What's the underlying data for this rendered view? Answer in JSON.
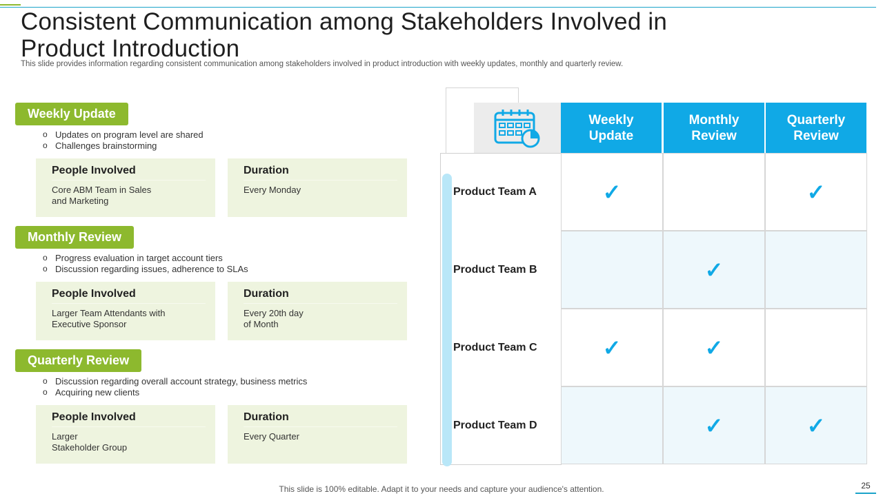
{
  "title": "Consistent Communication among Stakeholders Involved in Product Introduction",
  "subtitle": "This slide provides information regarding consistent communication among stakeholders involved in product introduction with weekly updates, monthly and quarterly review.",
  "sections": [
    {
      "tag": "Weekly Update",
      "bullets": [
        "Updates on program level are shared",
        "Challenges brainstorming"
      ],
      "people_head": "People Involved",
      "people_text": "Core ABM Team in Sales\nand Marketing",
      "duration_head": "Duration",
      "duration_text": "Every Monday"
    },
    {
      "tag": "Monthly Review",
      "bullets": [
        "Progress evaluation  in target account tiers",
        "Discussion regarding  issues, adherence to SLAs"
      ],
      "people_head": "People Involved",
      "people_text": "Larger Team Attendants with\nExecutive Sponsor",
      "duration_head": "Duration",
      "duration_text": "Every 20th day\nof Month"
    },
    {
      "tag": "Quarterly Review",
      "bullets": [
        "Discussion regarding  overall account strategy, business  metrics",
        "Acquiring new clients"
      ],
      "people_head": "People Involved",
      "people_text": "Larger\nStakeholder Group",
      "duration_head": "Duration",
      "duration_text": "Every Quarter"
    }
  ],
  "table": {
    "icon": "calendar-icon",
    "headers": [
      "Weekly\nUpdate",
      "Monthly\nReview",
      "Quarterly\nReview"
    ],
    "check_symbol": "✓",
    "rows": [
      {
        "label": "Product Team A",
        "checks": [
          true,
          false,
          true
        ]
      },
      {
        "label": "Product Team B",
        "checks": [
          false,
          true,
          false
        ]
      },
      {
        "label": "Product Team C",
        "checks": [
          true,
          true,
          false
        ]
      },
      {
        "label": "Product Team D",
        "checks": [
          false,
          true,
          true
        ]
      }
    ]
  },
  "colors": {
    "accent_green": "#8db92e",
    "accent_blue": "#10a9e6",
    "card_bg": "#eef4df"
  },
  "footer": "This slide is 100% editable. Adapt it to your needs and capture your audience's attention.",
  "page_number": "25"
}
